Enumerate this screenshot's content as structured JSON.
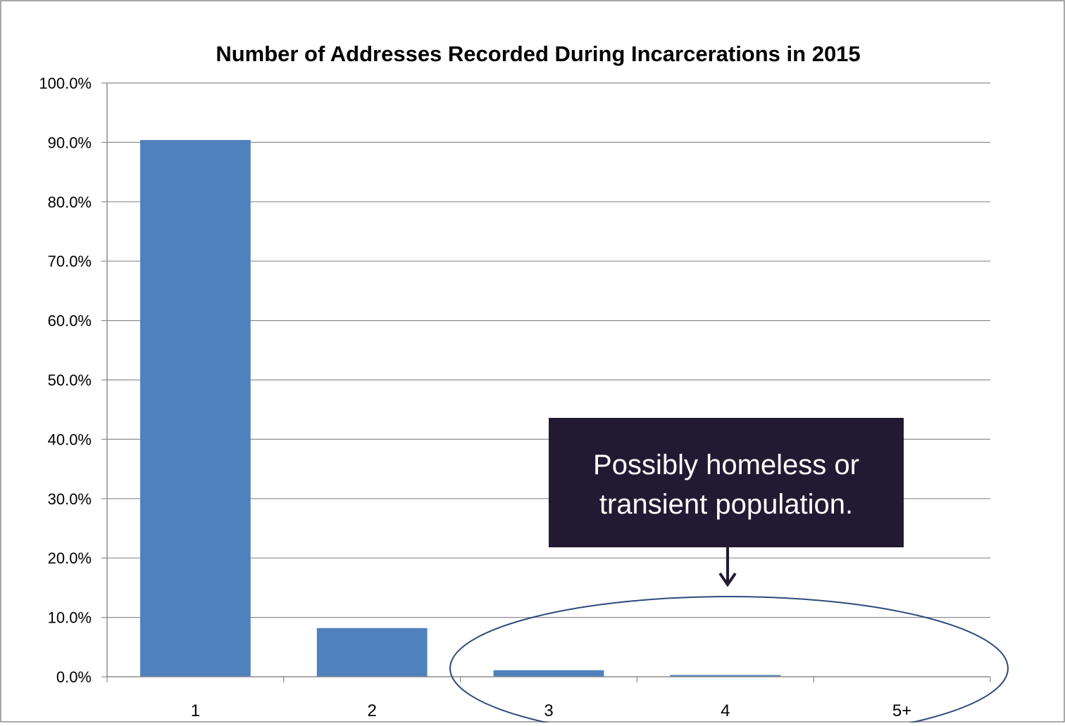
{
  "chart_data": {
    "type": "bar",
    "title": "Number of Addresses Recorded During Incarcerations  in 2015",
    "xlabel": "",
    "ylabel": "",
    "categories": [
      "1",
      "2",
      "3",
      "4",
      "5+"
    ],
    "values": [
      90.4,
      8.2,
      1.1,
      0.3,
      0.0
    ],
    "value_format": "percent_1dp",
    "ylim": [
      0,
      100
    ],
    "y_ticks": [
      0,
      10,
      20,
      30,
      40,
      50,
      60,
      70,
      80,
      90,
      100
    ],
    "y_tick_labels": [
      "0.0%",
      "10.0%",
      "20.0%",
      "30.0%",
      "40.0%",
      "50.0%",
      "60.0%",
      "70.0%",
      "80.0%",
      "90.0%",
      "100.0%"
    ],
    "grid": true,
    "legend": "none",
    "colors": {
      "bar": "#4F81BD",
      "grid": "#8C8C8C",
      "axis": "#8C8C8C",
      "callout_bg": "#221A33",
      "callout_text": "#ffffff",
      "ellipse": "#2E4A7A",
      "arrow": "#221A33",
      "frame": "#8C8C8C"
    },
    "annotations": [
      {
        "type": "callout",
        "lines": [
          "Possibly homeless or",
          "transient population."
        ],
        "target_categories": [
          "3",
          "4",
          "5+"
        ]
      }
    ]
  }
}
